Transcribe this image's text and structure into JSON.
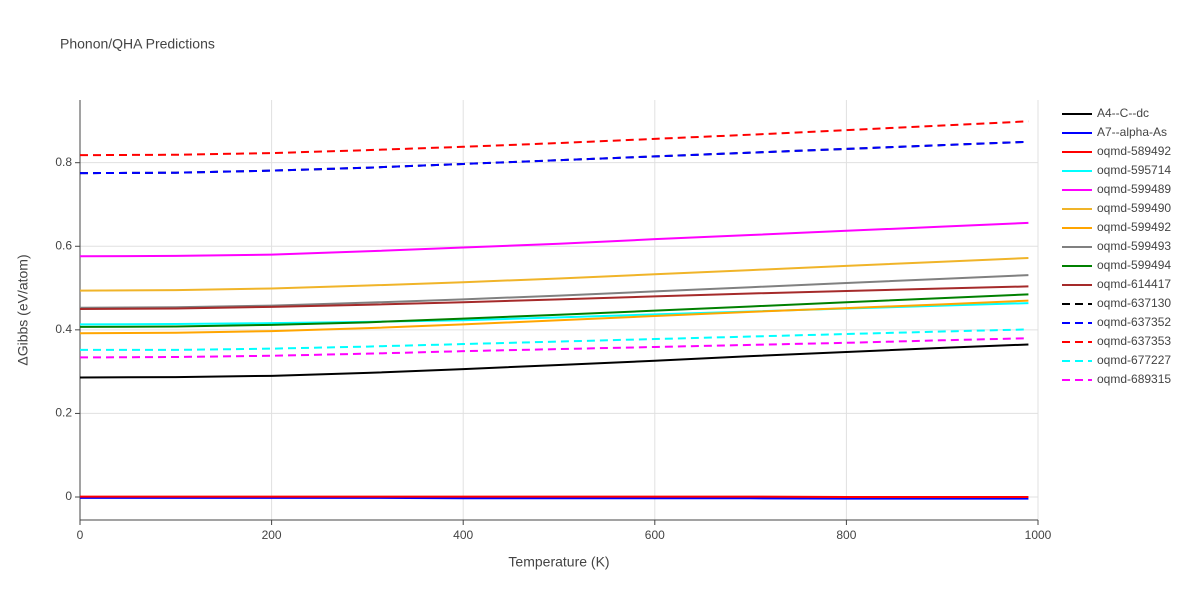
{
  "chart_data": {
    "type": "line",
    "title": "Phonon/QHA Predictions",
    "x_label": "Temperature (K)",
    "y_label": "ΔGibbs (eV/atom)",
    "x": [
      0,
      100,
      200,
      300,
      400,
      500,
      600,
      700,
      800,
      900,
      990
    ],
    "xlim": [
      0,
      1000
    ],
    "xticks": [
      0,
      200,
      400,
      600,
      800,
      1000
    ],
    "ylim": [
      -0.055,
      0.95
    ],
    "yticks": [
      0,
      0.2,
      0.4,
      0.6,
      0.8
    ],
    "grid": true,
    "legend": "right",
    "series": [
      {
        "name": "A4--C--dc",
        "color": "#000000",
        "dash": "solid",
        "values": [
          0.286,
          0.287,
          0.29,
          0.297,
          0.306,
          0.316,
          0.326,
          0.337,
          0.347,
          0.357,
          0.365
        ]
      },
      {
        "name": "A7--alpha-As",
        "color": "#0000ff",
        "dash": "solid",
        "values": [
          -0.002,
          -0.002,
          -0.002,
          -0.002,
          -0.003,
          -0.003,
          -0.003,
          -0.003,
          -0.004,
          -0.004,
          -0.004
        ]
      },
      {
        "name": "oqmd-589492",
        "color": "#ff0000",
        "dash": "solid",
        "values": [
          0.001,
          0.001,
          0.001,
          0.001,
          0.001,
          0.001,
          0.001,
          0.001,
          0.0,
          0.0,
          0.0
        ]
      },
      {
        "name": "oqmd-595714",
        "color": "#00ffff",
        "dash": "solid",
        "values": [
          0.413,
          0.414,
          0.416,
          0.419,
          0.423,
          0.43,
          0.437,
          0.444,
          0.451,
          0.458,
          0.464
        ]
      },
      {
        "name": "oqmd-599489",
        "color": "#ff00ff",
        "dash": "solid",
        "values": [
          0.576,
          0.577,
          0.58,
          0.588,
          0.597,
          0.606,
          0.617,
          0.627,
          0.637,
          0.647,
          0.656
        ]
      },
      {
        "name": "oqmd-599490",
        "color": "#f0b429",
        "dash": "solid",
        "values": [
          0.494,
          0.495,
          0.499,
          0.506,
          0.514,
          0.523,
          0.533,
          0.543,
          0.553,
          0.563,
          0.572
        ]
      },
      {
        "name": "oqmd-599492",
        "color": "#ffa500",
        "dash": "solid",
        "values": [
          0.392,
          0.393,
          0.397,
          0.404,
          0.413,
          0.423,
          0.433,
          0.443,
          0.452,
          0.461,
          0.47
        ]
      },
      {
        "name": "oqmd-599493",
        "color": "#808080",
        "dash": "solid",
        "values": [
          0.453,
          0.454,
          0.458,
          0.465,
          0.473,
          0.482,
          0.492,
          0.502,
          0.512,
          0.522,
          0.531
        ]
      },
      {
        "name": "oqmd-599494",
        "color": "#008000",
        "dash": "solid",
        "values": [
          0.407,
          0.408,
          0.412,
          0.418,
          0.427,
          0.436,
          0.446,
          0.456,
          0.466,
          0.476,
          0.485
        ]
      },
      {
        "name": "oqmd-614417",
        "color": "#a52a2a",
        "dash": "solid",
        "values": [
          0.45,
          0.451,
          0.455,
          0.46,
          0.466,
          0.473,
          0.48,
          0.487,
          0.493,
          0.499,
          0.504
        ]
      },
      {
        "name": "oqmd-637130",
        "color": "#000000",
        "dash": "dash",
        "values": [
          0.775,
          0.776,
          0.781,
          0.788,
          0.797,
          0.806,
          0.815,
          0.824,
          0.833,
          0.842,
          0.85
        ]
      },
      {
        "name": "oqmd-637352",
        "color": "#0000ff",
        "dash": "dash",
        "values": [
          0.775,
          0.776,
          0.781,
          0.788,
          0.797,
          0.806,
          0.815,
          0.824,
          0.833,
          0.842,
          0.85
        ]
      },
      {
        "name": "oqmd-637353",
        "color": "#ff0000",
        "dash": "dash",
        "values": [
          0.818,
          0.819,
          0.823,
          0.83,
          0.838,
          0.847,
          0.857,
          0.867,
          0.878,
          0.889,
          0.899
        ]
      },
      {
        "name": "oqmd-677227",
        "color": "#00ffff",
        "dash": "dash",
        "values": [
          0.352,
          0.352,
          0.355,
          0.36,
          0.366,
          0.372,
          0.378,
          0.384,
          0.39,
          0.396,
          0.401
        ]
      },
      {
        "name": "oqmd-689315",
        "color": "#ff00ff",
        "dash": "dash",
        "values": [
          0.334,
          0.335,
          0.338,
          0.343,
          0.349,
          0.354,
          0.359,
          0.364,
          0.369,
          0.375,
          0.38
        ]
      }
    ]
  }
}
